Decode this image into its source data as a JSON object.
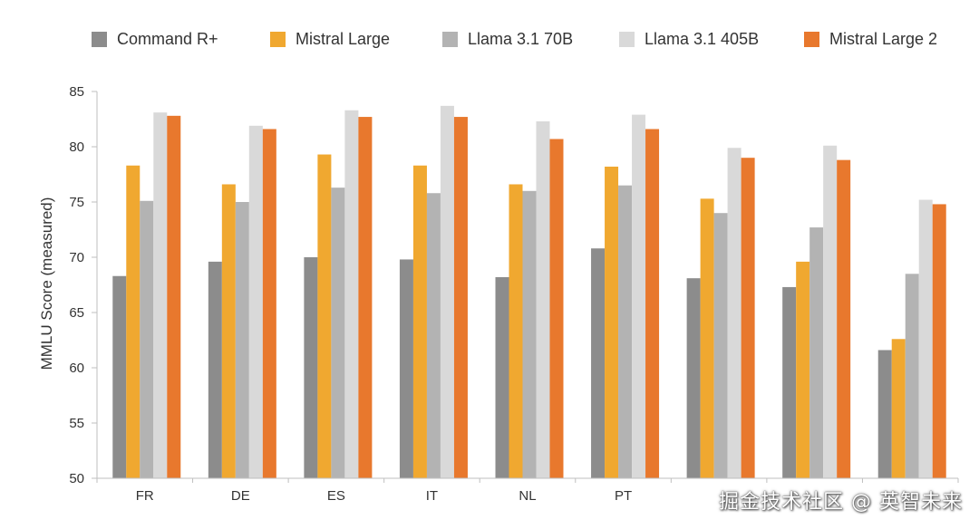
{
  "chart_data": {
    "type": "bar",
    "ylabel": "MMLU Score (measured)",
    "xlabel": "",
    "ylim": [
      50,
      85
    ],
    "yticks": [
      50,
      55,
      60,
      65,
      70,
      75,
      80,
      85
    ],
    "grid": false,
    "legend_position": "top",
    "categories": [
      "FR",
      "DE",
      "ES",
      "IT",
      "NL",
      "PT",
      "",
      "",
      ""
    ],
    "series": [
      {
        "name": "Command R+",
        "color": "#8c8c8c",
        "values": [
          68.3,
          69.6,
          70.0,
          69.8,
          68.2,
          70.8,
          68.1,
          67.3,
          61.6
        ]
      },
      {
        "name": "Mistral Large",
        "color": "#f0a830",
        "values": [
          78.3,
          76.6,
          79.3,
          78.3,
          76.6,
          78.2,
          75.3,
          69.6,
          62.6
        ]
      },
      {
        "name": "Llama 3.1 70B",
        "color": "#b3b3b3",
        "values": [
          75.1,
          75.0,
          76.3,
          75.8,
          76.0,
          76.5,
          74.0,
          72.7,
          68.5
        ]
      },
      {
        "name": "Llama 3.1 405B",
        "color": "#d9d9d9",
        "values": [
          83.1,
          81.9,
          83.3,
          83.7,
          82.3,
          82.9,
          79.9,
          80.1,
          75.2
        ]
      },
      {
        "name": "Mistral Large 2",
        "color": "#e8782d",
        "values": [
          82.8,
          81.6,
          82.7,
          82.7,
          80.7,
          81.6,
          79.0,
          78.8,
          74.8
        ]
      }
    ]
  },
  "watermark": "掘金技术社区 @ 英智未来"
}
